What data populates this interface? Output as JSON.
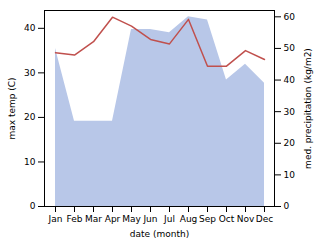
{
  "chart_data": {
    "type": "line",
    "categories": [
      "Jan",
      "Feb",
      "Mar",
      "Apr",
      "May",
      "Jun",
      "Jul",
      "Aug",
      "Sep",
      "Oct",
      "Nov",
      "Dec"
    ],
    "series": [
      {
        "type": "area",
        "axis": "y2",
        "color": "#b8c7e8",
        "values": [
          50,
          27,
          27,
          27,
          56,
          56,
          55,
          60,
          59,
          40,
          45,
          39
        ]
      },
      {
        "type": "line",
        "color": "#c0504d",
        "values": [
          34.5,
          34.0,
          37.0,
          42.5,
          40.5,
          37.5,
          36.5,
          42.0,
          31.5,
          31.5,
          35.0,
          33.0
        ]
      }
    ],
    "xlabel": "date (month)",
    "ylabel": "max temp (C)",
    "y2label": "med. precipitation (kg/m2)",
    "ylim": [
      0,
      44
    ],
    "yticks": [
      0,
      10,
      20,
      30,
      40
    ],
    "y2lim": [
      0,
      62
    ],
    "y2ticks": [
      0,
      10,
      20,
      30,
      40,
      50,
      60
    ],
    "grid": false
  }
}
